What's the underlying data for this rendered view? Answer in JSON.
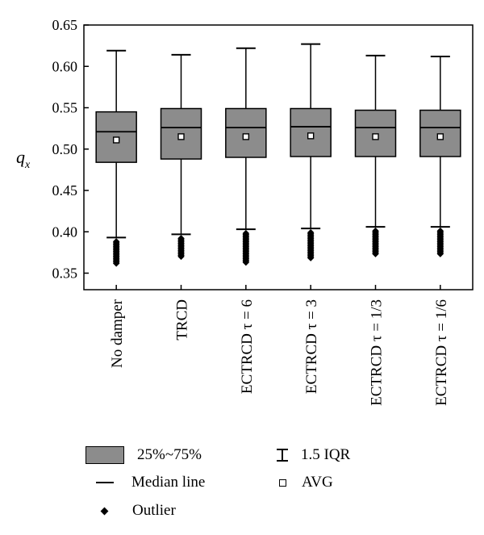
{
  "chart_data": {
    "type": "box",
    "ylabel": "q",
    "ylabel_sub": "x",
    "ylim": [
      0.33,
      0.65
    ],
    "yticks": [
      "0.35",
      "0.40",
      "0.45",
      "0.50",
      "0.55",
      "0.60",
      "0.65"
    ],
    "ytick_values": [
      0.35,
      0.4,
      0.45,
      0.5,
      0.55,
      0.6,
      0.65
    ],
    "categories": [
      "No damper",
      "TRCD",
      "ECTRCD τ = 6",
      "ECTRCD τ = 3",
      "ECTRCD τ = 1/3",
      "ECTRCD τ = 1/6"
    ],
    "series": [
      {
        "q1": 0.484,
        "median": 0.521,
        "q3": 0.545,
        "whisker_low": 0.393,
        "whisker_high": 0.619,
        "avg": 0.511,
        "outlier_min": 0.361
      },
      {
        "q1": 0.488,
        "median": 0.526,
        "q3": 0.549,
        "whisker_low": 0.397,
        "whisker_high": 0.614,
        "avg": 0.515,
        "outlier_min": 0.369
      },
      {
        "q1": 0.49,
        "median": 0.526,
        "q3": 0.549,
        "whisker_low": 0.403,
        "whisker_high": 0.622,
        "avg": 0.515,
        "outlier_min": 0.363
      },
      {
        "q1": 0.491,
        "median": 0.527,
        "q3": 0.549,
        "whisker_low": 0.404,
        "whisker_high": 0.627,
        "avg": 0.516,
        "outlier_min": 0.367
      },
      {
        "q1": 0.491,
        "median": 0.526,
        "q3": 0.547,
        "whisker_low": 0.406,
        "whisker_high": 0.613,
        "avg": 0.515,
        "outlier_min": 0.373
      },
      {
        "q1": 0.491,
        "median": 0.526,
        "q3": 0.547,
        "whisker_low": 0.406,
        "whisker_high": 0.612,
        "avg": 0.515,
        "outlier_min": 0.373
      }
    ],
    "colors": {
      "box_fill": "#8c8c8c",
      "line": "#000000"
    },
    "legend": {
      "placement": "bottom",
      "items": {
        "box": "25%~75%",
        "median": "Median line",
        "outlier": "Outlier",
        "iqr": "1.5 IQR",
        "avg": "AVG"
      }
    }
  }
}
